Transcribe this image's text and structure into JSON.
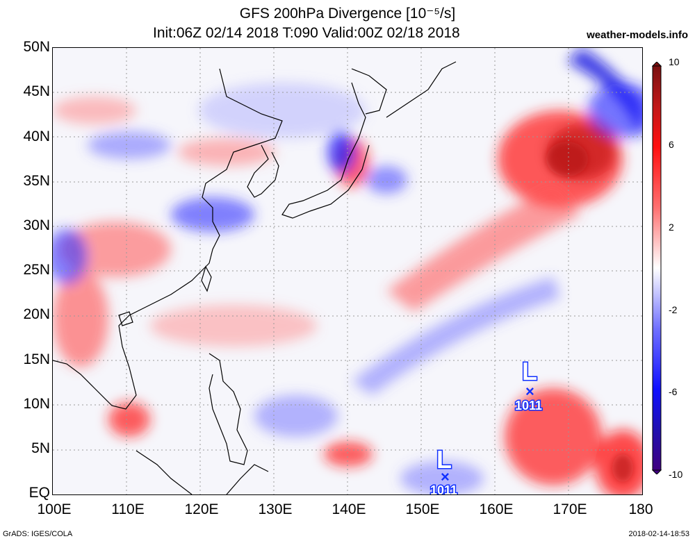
{
  "title": {
    "line1": "GFS 200hPa Divergence [10⁻⁵/s]",
    "line2": "Init:06Z 02/14 2018 T:090 Valid:00Z 02/18 2018"
  },
  "site": "weather-models.info",
  "y_axis": [
    "50N",
    "45N",
    "40N",
    "35N",
    "30N",
    "25N",
    "20N",
    "15N",
    "10N",
    "5N",
    "EQ"
  ],
  "x_axis": [
    "100E",
    "110E",
    "120E",
    "130E",
    "140E",
    "150E",
    "160E",
    "170E",
    "180"
  ],
  "colorbar": {
    "labels": [
      "10",
      "6",
      "2",
      "-2",
      "-6",
      "-10"
    ],
    "colors": [
      "#7a1010",
      "#d01010",
      "#ff3030",
      "#ff8080",
      "#ffd0d0",
      "#ffffff",
      "#d0d0ff",
      "#8080ff",
      "#2020ff",
      "#1010c0",
      "#400080"
    ]
  },
  "lows": [
    {
      "letter": "L",
      "pressure": "1011",
      "lon": 165,
      "lat": 11.5
    },
    {
      "letter": "L",
      "pressure": "1011",
      "lon": 153,
      "lat": 2
    }
  ],
  "credit_left": "GrADS: IGES/COLA",
  "credit_right": "2018-02-14-18:53"
}
